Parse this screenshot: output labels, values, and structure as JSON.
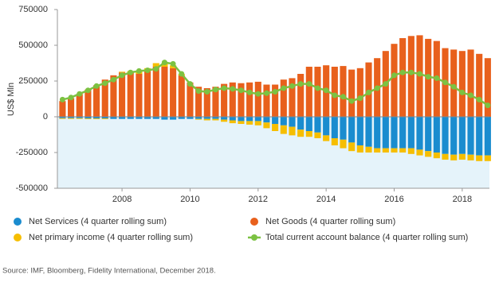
{
  "chart_data": {
    "type": "bar",
    "stacked": true,
    "y_label": "US$ Mln",
    "source": "Source: IMF, Bloomberg, Fidelity International, December 2018.",
    "x": [
      2006.25,
      2006.5,
      2006.75,
      2007,
      2007.25,
      2007.5,
      2007.75,
      2008,
      2008.25,
      2008.5,
      2008.75,
      2009,
      2009.25,
      2009.5,
      2009.75,
      2010,
      2010.25,
      2010.5,
      2010.75,
      2011,
      2011.25,
      2011.5,
      2011.75,
      2012,
      2012.25,
      2012.5,
      2012.75,
      2013,
      2013.25,
      2013.5,
      2013.75,
      2014,
      2014.25,
      2014.5,
      2014.75,
      2015,
      2015.25,
      2015.5,
      2015.75,
      2016,
      2016.25,
      2016.5,
      2016.75,
      2017,
      2017.25,
      2017.5,
      2017.75,
      2018,
      2018.25,
      2018.5,
      2018.75
    ],
    "xlim": [
      2006.1,
      2018.8
    ],
    "xticks": [
      2008,
      2010,
      2012,
      2014,
      2016,
      2018
    ],
    "ylim": [
      -500000,
      750000
    ],
    "yticks": [
      -500000,
      -250000,
      0,
      250000,
      500000,
      750000
    ],
    "series": [
      {
        "name": "Net Services (4 quarter rolling sum)",
        "color": "#1a8ccf",
        "values": [
          -10000,
          -10000,
          -10000,
          -12000,
          -12000,
          -12000,
          -15000,
          -15000,
          -15000,
          -15000,
          -15000,
          -15000,
          -20000,
          -20000,
          -15000,
          -15000,
          -15000,
          -15000,
          -15000,
          -20000,
          -25000,
          -30000,
          -30000,
          -30000,
          -40000,
          -50000,
          -60000,
          -70000,
          -90000,
          -100000,
          -110000,
          -130000,
          -150000,
          -160000,
          -180000,
          -200000,
          -210000,
          -220000,
          -220000,
          -220000,
          -220000,
          -220000,
          -230000,
          -240000,
          -250000,
          -260000,
          -265000,
          -260000,
          -265000,
          -270000,
          -270000
        ]
      },
      {
        "name": "Net Goods (4 quarter rolling sum)",
        "color": "#e8601c",
        "values": [
          110000,
          130000,
          160000,
          190000,
          220000,
          260000,
          290000,
          310000,
          310000,
          300000,
          320000,
          350000,
          350000,
          340000,
          290000,
          240000,
          210000,
          200000,
          210000,
          230000,
          240000,
          235000,
          240000,
          245000,
          225000,
          225000,
          260000,
          270000,
          300000,
          350000,
          350000,
          360000,
          350000,
          355000,
          330000,
          340000,
          380000,
          410000,
          460000,
          510000,
          550000,
          565000,
          570000,
          545000,
          530000,
          480000,
          470000,
          460000,
          470000,
          440000,
          410000
        ]
      },
      {
        "name": "Net primary income (4 quarter rolling sum)",
        "color": "#f6be00",
        "values": [
          -5000,
          -5000,
          -5000,
          -5000,
          -5000,
          -5000,
          0,
          5000,
          10000,
          15000,
          20000,
          25000,
          25000,
          20000,
          10000,
          0,
          -5000,
          -10000,
          -10000,
          -15000,
          -20000,
          -20000,
          -25000,
          -30000,
          -40000,
          -50000,
          -60000,
          -60000,
          -50000,
          -40000,
          -40000,
          -40000,
          -50000,
          -60000,
          -60000,
          -50000,
          -40000,
          -30000,
          -30000,
          -30000,
          -30000,
          -40000,
          -40000,
          -40000,
          -40000,
          -40000,
          -40000,
          -40000,
          -40000,
          -40000,
          -40000
        ]
      },
      {
        "name": "Total current account balance (4 quarter rolling sum)",
        "color": "#7cc242",
        "type": "line",
        "values": [
          120000,
          135000,
          160000,
          185000,
          215000,
          235000,
          260000,
          290000,
          310000,
          320000,
          325000,
          335000,
          380000,
          370000,
          300000,
          230000,
          180000,
          175000,
          190000,
          200000,
          195000,
          185000,
          170000,
          160000,
          165000,
          175000,
          200000,
          215000,
          230000,
          230000,
          200000,
          185000,
          150000,
          140000,
          110000,
          130000,
          170000,
          200000,
          230000,
          290000,
          310000,
          310000,
          300000,
          280000,
          270000,
          240000,
          210000,
          170000,
          150000,
          120000,
          80000
        ]
      }
    ]
  }
}
